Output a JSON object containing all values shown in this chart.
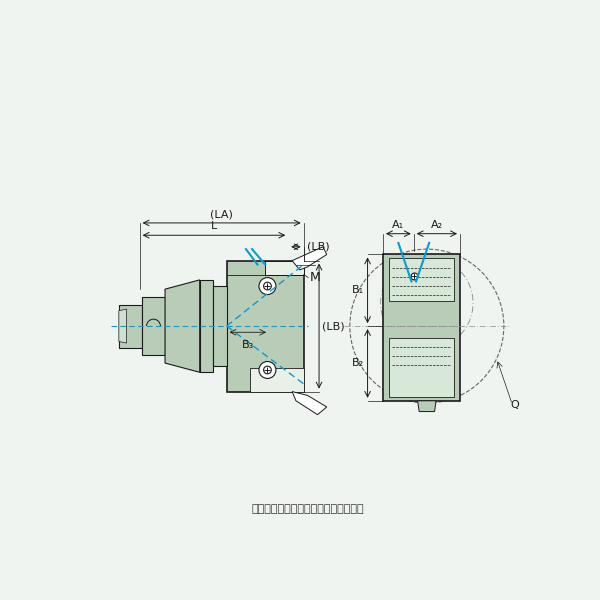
{
  "bg_color": "#f0f4f0",
  "light_green": "#b8ccb8",
  "dark_line": "#1a1a1a",
  "cyan_line": "#1199cc",
  "footer_text": "代表画像　商品仕様をご確認ください",
  "label_LA": "(LA)",
  "label_L": "L",
  "label_LB_top": "(LB)",
  "label_LB_side": "(LB)",
  "label_M": "M",
  "label_B3": "B₃",
  "label_B1": "B₁",
  "label_B2": "B₂",
  "label_A1": "A₁",
  "label_A2": "A₂",
  "label_Q": "Q",
  "font_size_label": 8,
  "font_size_footer": 8
}
